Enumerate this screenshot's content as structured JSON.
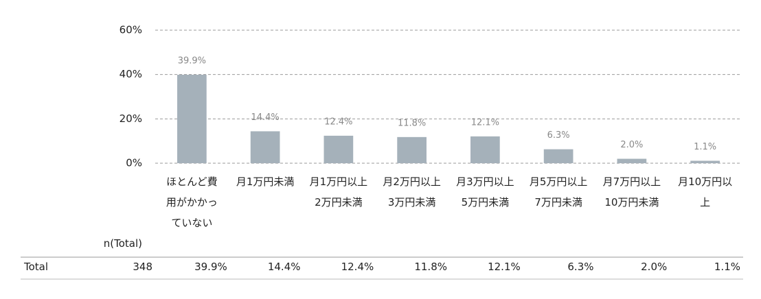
{
  "chart_data": {
    "type": "bar",
    "categories": [
      "ほとんど費\n用がかかっ\nていない",
      "月1万円未満",
      "月1万円以上\n2万円未満",
      "月2万円以上\n3万円未満",
      "月3万円以上\n5万円未満",
      "月5万円以上\n7万円未満",
      "月7万円以上\n10万円未満",
      "月10万円以\n上"
    ],
    "values": [
      39.9,
      14.4,
      12.4,
      11.8,
      12.1,
      6.3,
      2.0,
      1.1
    ],
    "value_labels": [
      "39.9%",
      "14.4%",
      "12.4%",
      "11.8%",
      "12.1%",
      "6.3%",
      "2.0%",
      "1.1%"
    ],
    "color": "#a5b1ba",
    "ylim": [
      0,
      60
    ],
    "yticks": [
      {
        "value": 0,
        "label": "0%"
      },
      {
        "value": 20,
        "label": "20%"
      },
      {
        "value": 40,
        "label": "40%"
      },
      {
        "value": 60,
        "label": "60%"
      }
    ],
    "grid": true
  },
  "table": {
    "header": "n(Total)",
    "rows": [
      {
        "label": "Total",
        "n": 348,
        "cells": [
          "39.9%",
          "14.4%",
          "12.4%",
          "11.8%",
          "12.1%",
          "6.3%",
          "2.0%",
          "1.1%"
        ]
      }
    ]
  }
}
